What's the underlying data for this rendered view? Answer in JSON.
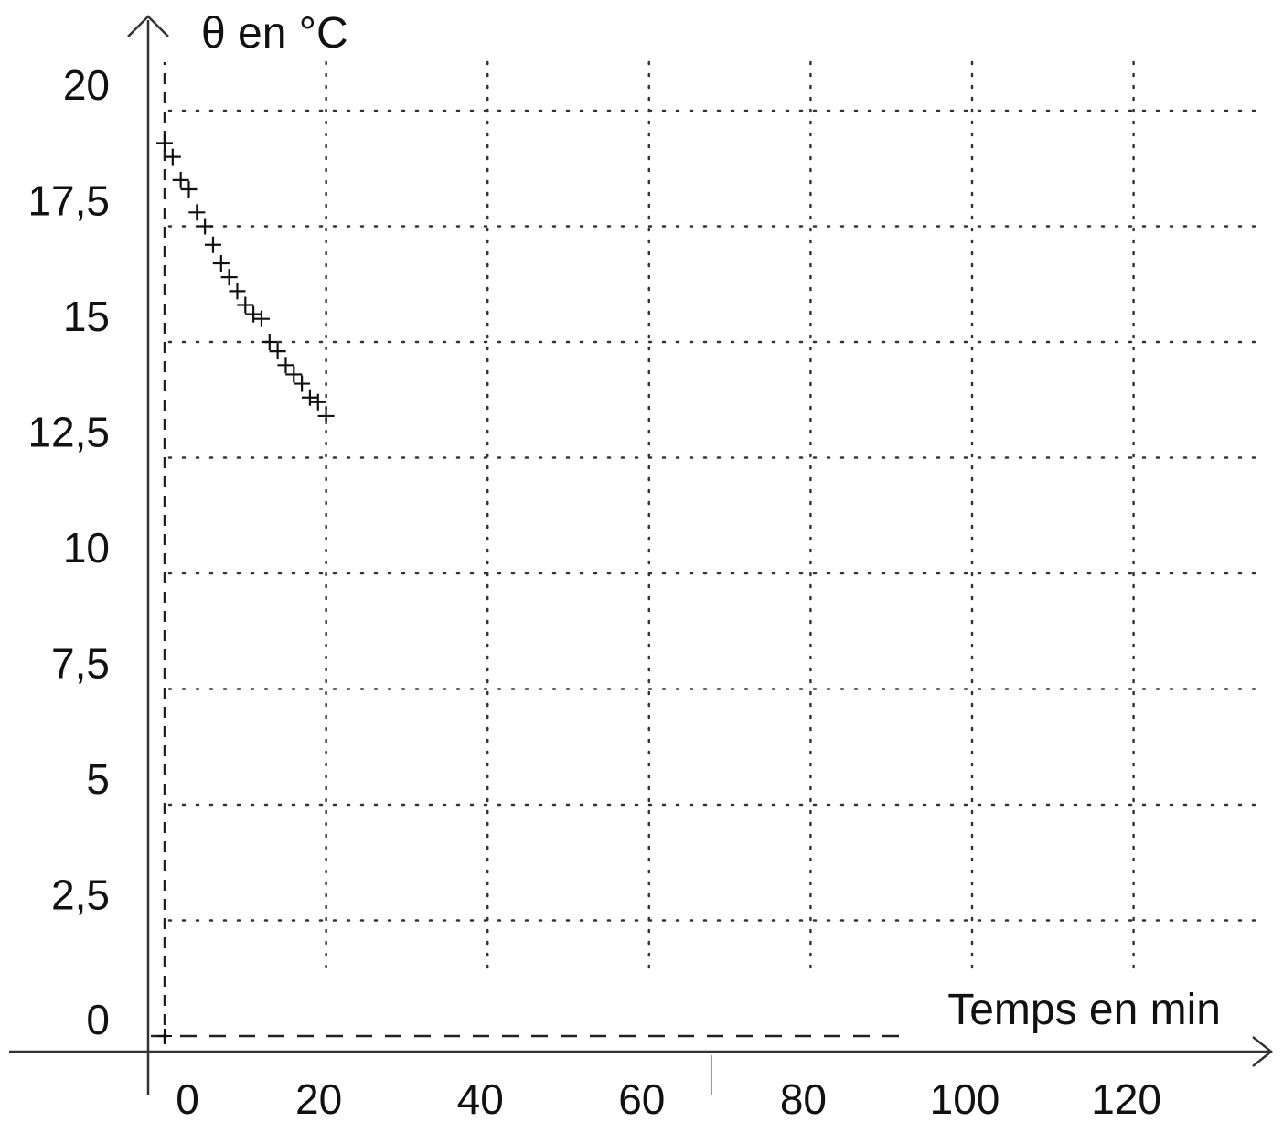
{
  "chart_data": {
    "type": "scatter",
    "title": "",
    "ylabel": "θ en °C",
    "xlabel": "Temps en min",
    "xlim": [
      0,
      130
    ],
    "ylim": [
      0,
      21
    ],
    "x_ticks": [
      "0",
      "20",
      "40",
      "60",
      "80",
      "100",
      "120"
    ],
    "y_ticks": [
      "0",
      "2,5",
      "5",
      "7,5",
      "10",
      "12,5",
      "15",
      "17,5",
      "20"
    ],
    "grid": true,
    "marker": "+",
    "series": [
      {
        "x": [
          0,
          1,
          2,
          3,
          4,
          5,
          6,
          7,
          8,
          9,
          10,
          11,
          12,
          13,
          14,
          15,
          16,
          17,
          18,
          19,
          20
        ],
        "y": [
          19.3,
          19.0,
          18.5,
          18.3,
          17.8,
          17.5,
          17.1,
          16.7,
          16.4,
          16.1,
          15.8,
          15.6,
          15.5,
          15.0,
          14.8,
          14.5,
          14.3,
          14.1,
          13.8,
          13.7,
          13.4
        ]
      }
    ],
    "colors": {
      "ink": "#111111",
      "grid": "#333333"
    }
  }
}
